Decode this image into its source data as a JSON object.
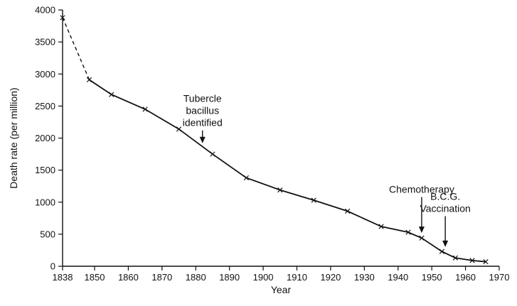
{
  "chart_data": {
    "type": "line",
    "title": "",
    "xlabel": "Year",
    "ylabel": "Death rate (per million)",
    "xlim": [
      1838,
      1970
    ],
    "ylim": [
      0,
      4000
    ],
    "x_ticks": [
      1838,
      1850,
      1860,
      1870,
      1880,
      1890,
      1900,
      1910,
      1920,
      1930,
      1940,
      1950,
      1960,
      1970
    ],
    "y_ticks": [
      0,
      500,
      1000,
      1500,
      2000,
      2500,
      3000,
      3500,
      4000
    ],
    "grid": false,
    "legend": "none",
    "series": [
      {
        "x": [
          1838,
          1848,
          1855,
          1865,
          1875,
          1885,
          1895,
          1905,
          1915,
          1925,
          1935,
          1943,
          1947,
          1953,
          1957,
          1962,
          1966
        ],
        "y": [
          3880,
          2910,
          2680,
          2450,
          2140,
          1750,
          1380,
          1190,
          1030,
          860,
          620,
          530,
          440,
          230,
          130,
          90,
          70
        ],
        "dashed_until_x": 1848
      }
    ],
    "annotations": [
      {
        "lines": [
          "Tubercle",
          "bacillus",
          "identified"
        ],
        "x": 1882,
        "y_from": 2120,
        "y_to": 1920
      },
      {
        "lines": [
          "Chemotherapy"
        ],
        "x": 1947,
        "y_from": 1080,
        "y_to": 520
      },
      {
        "lines": [
          "B.C.G.",
          "Vaccination"
        ],
        "x": 1954,
        "y_from": 780,
        "y_to": 300
      }
    ]
  }
}
